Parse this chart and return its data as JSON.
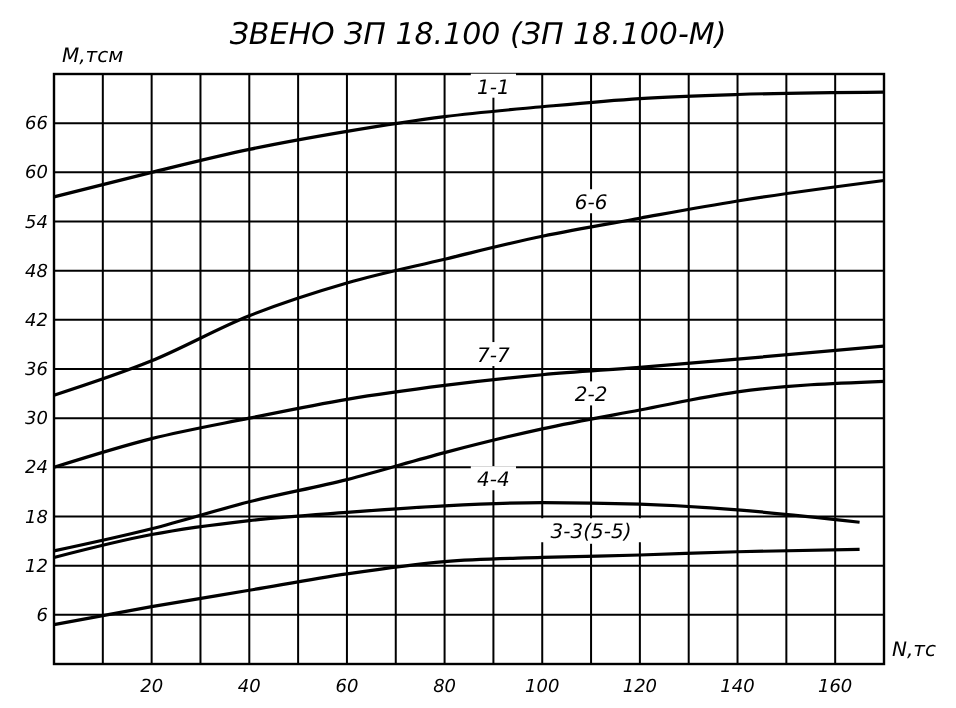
{
  "chart_data": {
    "type": "line",
    "title": "ЗВЕНО  ЗП 18.100 (ЗП 18.100-М)",
    "xlabel": "N,тс",
    "ylabel": "М,тсм",
    "xlim": [
      0,
      170
    ],
    "ylim": [
      0,
      72
    ],
    "xticks": [
      {
        "value": 10,
        "label": null
      },
      20,
      {
        "value": 30,
        "label": null
      },
      40,
      {
        "value": 50,
        "label": null
      },
      60,
      {
        "value": 70,
        "label": null
      },
      80,
      {
        "value": 90,
        "label": null
      },
      100,
      {
        "value": 110,
        "label": null
      },
      120,
      {
        "value": 130,
        "label": null
      },
      140,
      {
        "value": 150,
        "label": null
      },
      160
    ],
    "yticks": [
      6,
      12,
      18,
      24,
      30,
      36,
      42,
      48,
      54,
      60,
      66
    ],
    "grid": true,
    "marker": "none",
    "line_style": "solid",
    "series": [
      {
        "name": "1-1",
        "color": "#000000",
        "x": [
          0,
          20,
          40,
          60,
          80,
          100,
          120,
          140,
          170
        ],
        "values": [
          57,
          60,
          62.8,
          65,
          66.8,
          68,
          69,
          69.5,
          69.8
        ]
      },
      {
        "name": "6-6",
        "color": "#000000",
        "x": [
          0,
          20,
          40,
          60,
          80,
          100,
          120,
          140,
          170
        ],
        "values": [
          32.8,
          37,
          42.5,
          46.5,
          49.4,
          52.2,
          54.4,
          56.5,
          59
        ]
      },
      {
        "name": "7-7",
        "color": "#000000",
        "x": [
          0,
          20,
          40,
          60,
          80,
          100,
          120,
          140,
          170
        ],
        "values": [
          24,
          27.5,
          30,
          32.3,
          34,
          35.3,
          36.2,
          37.2,
          38.8
        ]
      },
      {
        "name": "2-2",
        "color": "#000000",
        "x": [
          0,
          20,
          40,
          60,
          80,
          100,
          120,
          140,
          170
        ],
        "values": [
          13.8,
          16.5,
          19.8,
          22.5,
          25.8,
          28.7,
          31,
          33.2,
          34.5
        ]
      },
      {
        "name": "4-4",
        "color": "#000000",
        "x": [
          0,
          20,
          40,
          60,
          80,
          100,
          120,
          140,
          165
        ],
        "values": [
          13,
          15.8,
          17.5,
          18.5,
          19.3,
          19.7,
          19.5,
          18.8,
          17.3
        ]
      },
      {
        "name": "3-3(5-5)",
        "color": "#000000",
        "x": [
          0,
          20,
          40,
          60,
          80,
          100,
          120,
          140,
          165
        ],
        "values": [
          4.8,
          7,
          9,
          11,
          12.5,
          13,
          13.3,
          13.7,
          14
        ]
      }
    ]
  }
}
